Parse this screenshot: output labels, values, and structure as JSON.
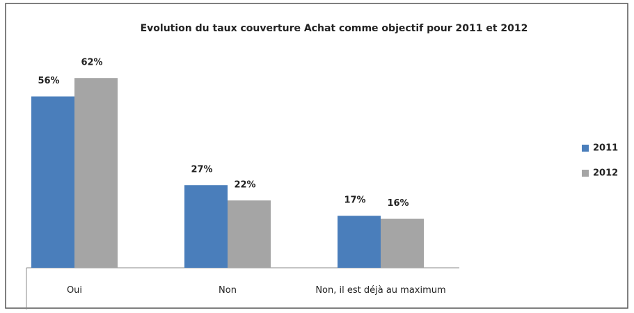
{
  "chart_data": {
    "type": "bar",
    "title": "Evolution du taux couverture Achat comme objectif pour 2011 et 2012",
    "categories": [
      "Oui",
      "Non",
      "Non, il est déjà au maximum"
    ],
    "series": [
      {
        "name": "2011",
        "color": "#4a7ebb",
        "values": [
          56,
          27,
          17
        ],
        "value_labels": [
          "56%",
          "27%",
          "17%"
        ]
      },
      {
        "name": "2012",
        "color": "#a5a5a5",
        "values": [
          62,
          22,
          16
        ],
        "value_labels": [
          "62%",
          "22%",
          "16%"
        ]
      }
    ]
  }
}
